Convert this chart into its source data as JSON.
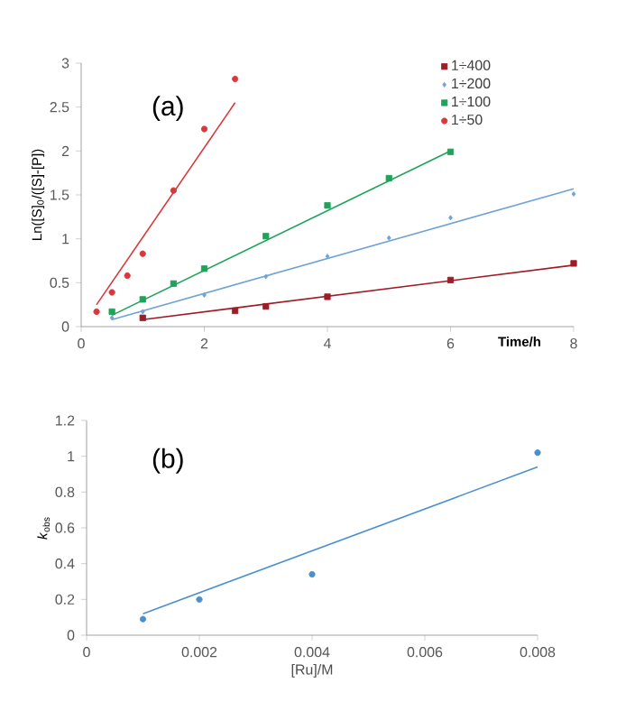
{
  "chart_data": [
    {
      "type": "scatter",
      "xlabel": "Time/h",
      "ylabel": "Ln([S]$_{0}$/([S]-[P])",
      "annotations": [
        "(a)"
      ],
      "xlim": [
        0,
        8
      ],
      "ylim": [
        0,
        3
      ],
      "xticks": [
        0,
        2,
        4,
        6,
        8
      ],
      "yticks": [
        0,
        0.5,
        1,
        1.5,
        2,
        2.5,
        3
      ],
      "legend": "top right",
      "grid": false,
      "series": [
        {
          "name": "1÷400",
          "color": "#a01c24",
          "marker": "square",
          "x": [
            1,
            2.5,
            3,
            4,
            6,
            8
          ],
          "values": [
            0.1,
            0.18,
            0.23,
            0.34,
            0.53,
            0.72
          ]
        },
        {
          "name": "1÷200",
          "color": "#6fa3d6",
          "marker": "diamond",
          "x": [
            0.5,
            1,
            2,
            3,
            4,
            5,
            6,
            8
          ],
          "values": [
            0.1,
            0.17,
            0.36,
            0.57,
            0.8,
            1.01,
            1.24,
            1.51
          ]
        },
        {
          "name": "1÷100",
          "color": "#1fa25a",
          "marker": "square",
          "x": [
            0.5,
            1,
            1.5,
            2,
            3,
            4,
            5,
            6
          ],
          "values": [
            0.17,
            0.31,
            0.49,
            0.66,
            1.03,
            1.38,
            1.69,
            1.99
          ]
        },
        {
          "name": "1÷50",
          "color": "#d9373b",
          "marker": "circle",
          "x": [
            0.25,
            0.5,
            0.75,
            1,
            1.5,
            2,
            2.5
          ],
          "values": [
            0.17,
            0.39,
            0.58,
            0.83,
            1.55,
            2.25,
            2.82
          ]
        },
        {
          "type": "line",
          "color": "#a01c24",
          "x": [
            1,
            8
          ],
          "values": [
            0.08,
            0.7
          ]
        },
        {
          "type": "line",
          "color": "#6fa3d6",
          "x": [
            0.5,
            8
          ],
          "values": [
            0.08,
            1.57
          ]
        },
        {
          "type": "line",
          "color": "#1fa25a",
          "x": [
            0.5,
            6
          ],
          "values": [
            0.13,
            2.0
          ]
        },
        {
          "type": "line",
          "color": "#d9373b",
          "x": [
            0.25,
            2.5
          ],
          "values": [
            0.25,
            2.55
          ]
        }
      ]
    },
    {
      "type": "scatter",
      "xlabel": "[Ru]/M",
      "ylabel": "*k*$_{obs}$",
      "annotations": [
        "(b)"
      ],
      "xlim": [
        0,
        0.008
      ],
      "ylim": [
        0,
        1.2
      ],
      "xticks": [
        0,
        0.002,
        0.004,
        0.006,
        0.008
      ],
      "yticks": [
        0,
        0.2,
        0.4,
        0.6,
        0.8,
        1,
        1.2
      ],
      "grid": false,
      "series": [
        {
          "color": "#4a90cf",
          "marker": "circle",
          "x": [
            0.001,
            0.002,
            0.004,
            0.008
          ],
          "values": [
            0.09,
            0.2,
            0.34,
            1.02
          ]
        },
        {
          "type": "line",
          "color": "#4a90cf",
          "x": [
            0.001,
            0.008
          ],
          "values": [
            0.12,
            0.94
          ]
        }
      ]
    }
  ]
}
